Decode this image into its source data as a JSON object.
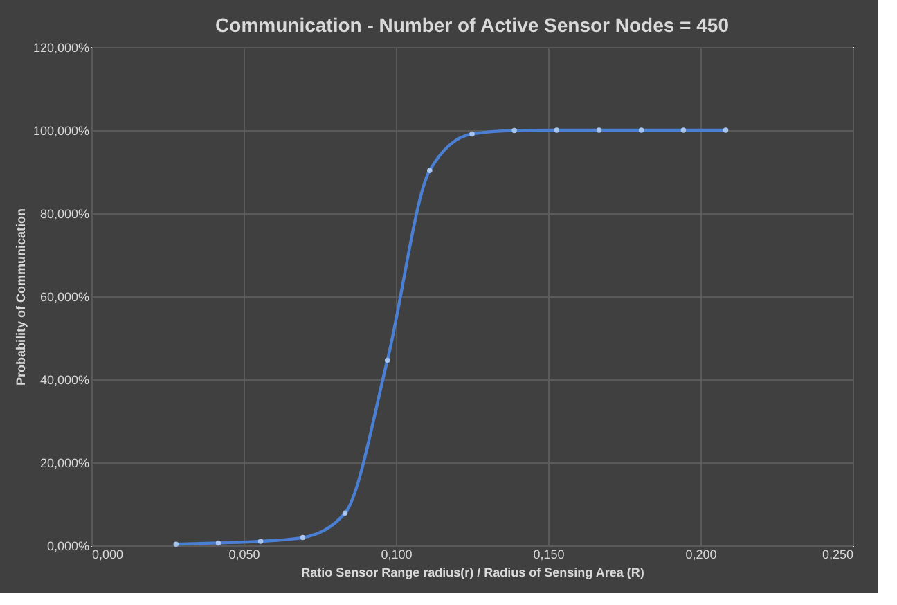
{
  "chart_data": {
    "type": "line",
    "title": "Communication - Number of Active Sensor Nodes = 450",
    "xlabel": "Ratio Sensor Range radius(r) / Radius of Sensing Area (R)",
    "ylabel": "Probability of Communication",
    "x": [
      0.0278,
      0.0417,
      0.0556,
      0.0694,
      0.0833,
      0.0972,
      0.1111,
      0.125,
      0.1389,
      0.1528,
      0.1667,
      0.1806,
      0.1944,
      0.2083
    ],
    "series": [
      {
        "color": "#4a7fd4",
        "values": [
          0.3,
          0.6,
          1.0,
          1.9,
          7.8,
          44.6,
          90.3,
          99.1,
          99.9,
          100,
          100,
          100,
          100,
          100
        ]
      }
    ],
    "xlim": [
      0,
      0.25
    ],
    "ylim": [
      0,
      120
    ],
    "xticks": [
      {
        "value": 0,
        "label": "0,000"
      },
      {
        "value": 0.05,
        "label": "0,050"
      },
      {
        "value": 0.1,
        "label": "0,100"
      },
      {
        "value": 0.15,
        "label": "0,150"
      },
      {
        "value": 0.2,
        "label": "0,200"
      },
      {
        "value": 0.25,
        "label": "0,250"
      }
    ],
    "yticks": [
      {
        "value": 0,
        "label": "0,000%"
      },
      {
        "value": 20,
        "label": "20,000%"
      },
      {
        "value": 40,
        "label": "40,000%"
      },
      {
        "value": 60,
        "label": "60,000%"
      },
      {
        "value": 80,
        "label": "80,000%"
      },
      {
        "value": 100,
        "label": "100,000%"
      },
      {
        "value": 120,
        "label": "120,000%"
      }
    ],
    "grid": true,
    "marker": "circle",
    "line_style": "solid"
  }
}
